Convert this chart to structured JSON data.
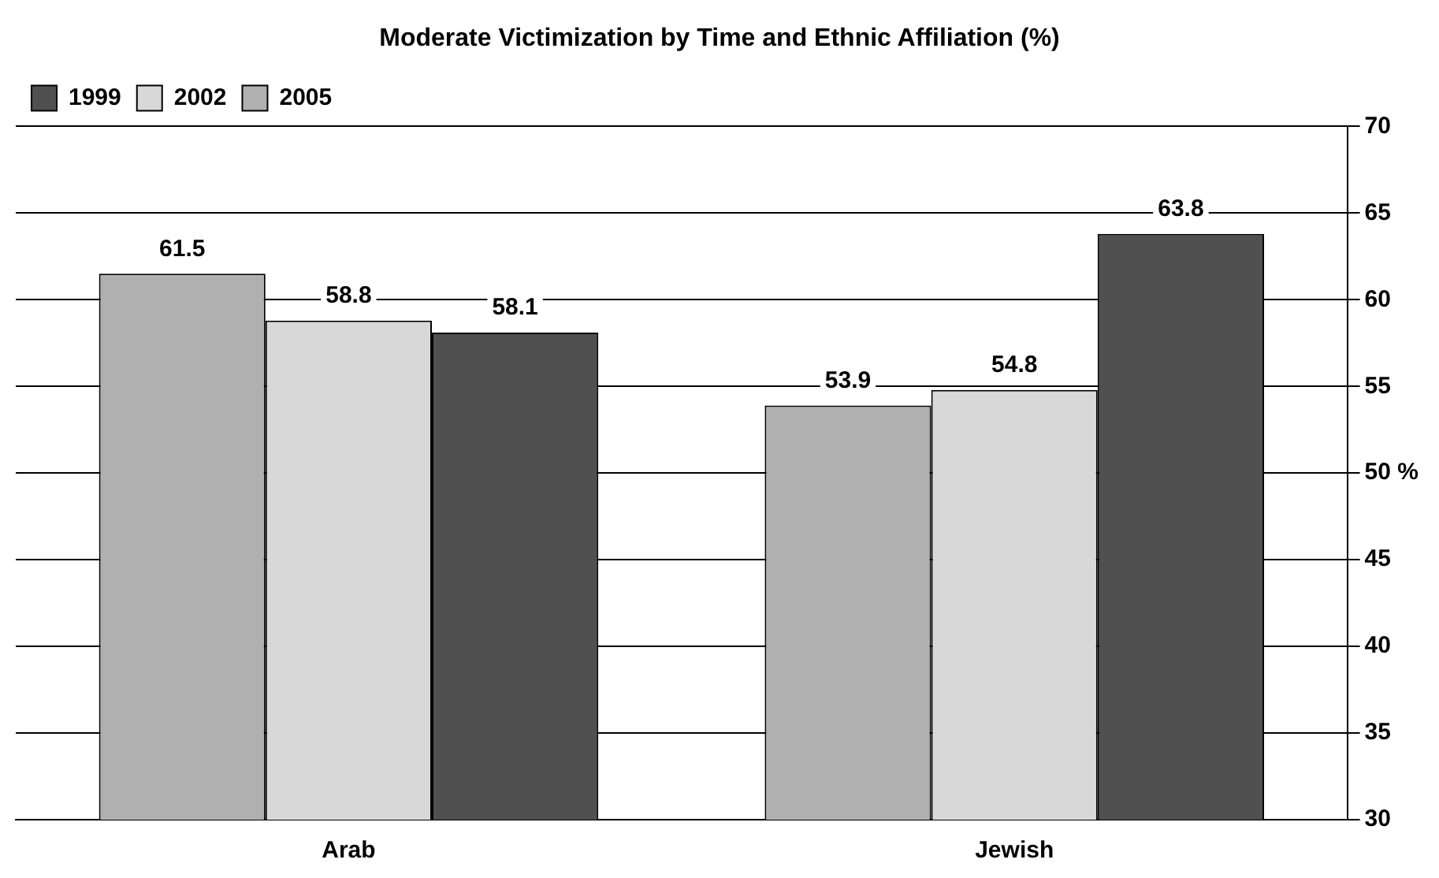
{
  "chart_data": {
    "type": "bar",
    "title": "Moderate Victimization by Time and Ethnic Affiliation (%)",
    "categories": [
      "Arab",
      "Jewish"
    ],
    "series": [
      {
        "name": "2005",
        "color": "#b0b0b0",
        "values": [
          61.5,
          53.9
        ]
      },
      {
        "name": "2002",
        "color": "#d8d8d8",
        "values": [
          58.8,
          54.8
        ]
      },
      {
        "name": "1999",
        "color": "#505050",
        "values": [
          58.1,
          63.8
        ]
      }
    ],
    "ylim": [
      30,
      70
    ],
    "yticks": [
      30,
      35,
      40,
      45,
      {
        "value": 50,
        "label": "50 %"
      },
      55,
      60,
      65,
      70
    ],
    "grid": "y",
    "legend": "top left",
    "data_labels": true
  }
}
